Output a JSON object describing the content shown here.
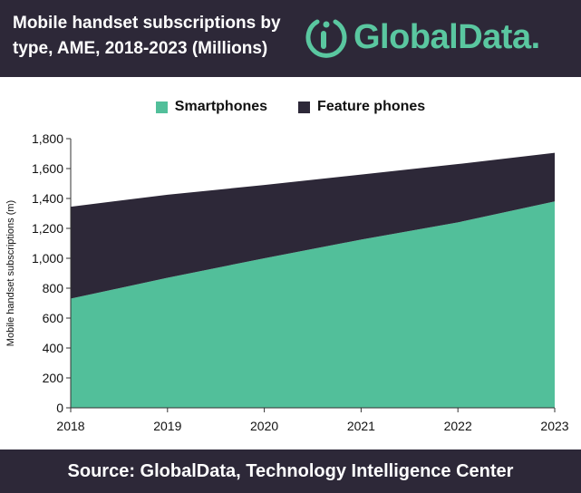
{
  "header": {
    "title_line1": "Mobile handset subscriptions by",
    "title_line2": "type, AME, 2018-2023 (Millions)",
    "logo_text": "GlobalData."
  },
  "footer": {
    "source": "Source:  GlobalData, Technology Intelligence Center"
  },
  "colors": {
    "smartphones": "#52bf9a",
    "feature_phones": "#2d2838",
    "background": "#ffffff",
    "header": "#2d2838"
  },
  "chart_data": {
    "type": "area",
    "stacked": true,
    "x": [
      "2018",
      "2019",
      "2020",
      "2021",
      "2022",
      "2023"
    ],
    "series": [
      {
        "name": "Smartphones",
        "values": [
          730,
          870,
          1000,
          1125,
          1240,
          1380
        ]
      },
      {
        "name": "Feature phones",
        "values": [
          615,
          555,
          490,
          435,
          390,
          325
        ]
      }
    ],
    "ylabel": "Mobile handset subscriptions (m)",
    "xlabel": "",
    "ylim": [
      0,
      1800
    ],
    "yticks": [
      0,
      200,
      400,
      600,
      800,
      1000,
      1200,
      1400,
      1600,
      1800
    ],
    "ytick_labels": [
      "0",
      "200",
      "400",
      "600",
      "800",
      "1,000",
      "1,200",
      "1,400",
      "1,600",
      "1,800"
    ],
    "legend": "top-center",
    "grid": false
  }
}
